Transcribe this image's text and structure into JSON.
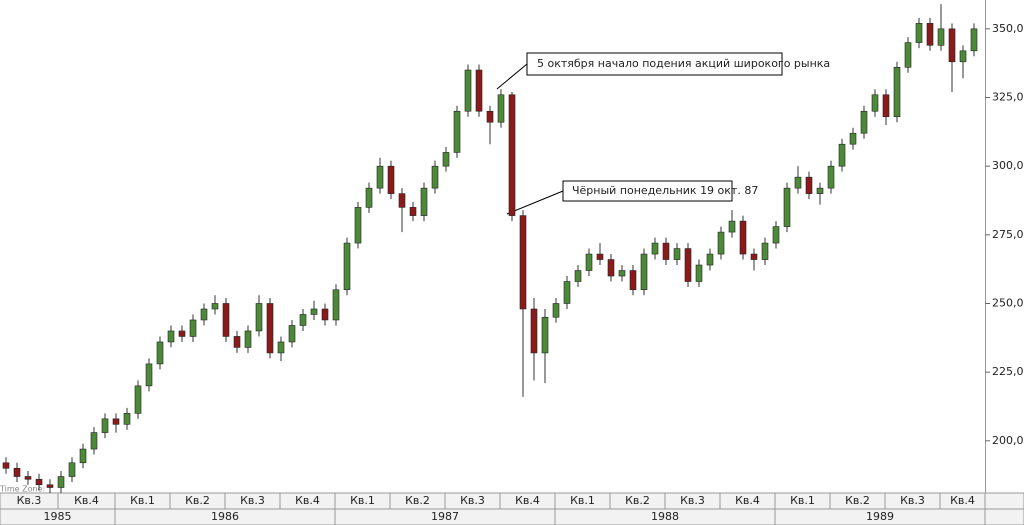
{
  "chart_data": {
    "type": "candlestick",
    "up_color": "#4c8a3a",
    "down_color": "#8b1a1a",
    "ylim": [
      181,
      360.5
    ],
    "yticks": [
      {
        "value": 200,
        "label": "200,00"
      },
      {
        "value": 225,
        "label": "225,00"
      },
      {
        "value": 250,
        "label": "250,00"
      },
      {
        "value": 275,
        "label": "275,00"
      },
      {
        "value": 300,
        "label": "300,00"
      },
      {
        "value": 325,
        "label": "325,00"
      },
      {
        "value": 350,
        "label": "350,00"
      }
    ],
    "candles": [
      [
        192,
        194,
        188,
        190
      ],
      [
        190,
        192,
        185,
        187
      ],
      [
        187,
        189,
        184,
        186
      ],
      [
        186,
        188,
        182,
        184
      ],
      [
        184,
        186,
        181,
        183
      ],
      [
        183,
        189,
        181,
        187
      ],
      [
        187,
        194,
        185,
        192
      ],
      [
        192,
        199,
        190,
        197
      ],
      [
        197,
        205,
        195,
        203
      ],
      [
        203,
        210,
        201,
        208
      ],
      [
        208,
        210,
        203,
        206
      ],
      [
        206,
        212,
        204,
        210
      ],
      [
        210,
        222,
        208,
        220
      ],
      [
        220,
        230,
        218,
        228
      ],
      [
        228,
        238,
        226,
        236
      ],
      [
        236,
        242,
        234,
        240
      ],
      [
        240,
        242,
        236,
        238
      ],
      [
        238,
        246,
        236,
        244
      ],
      [
        244,
        250,
        242,
        248
      ],
      [
        248,
        253,
        246,
        250
      ],
      [
        250,
        252,
        236,
        238
      ],
      [
        238,
        240,
        232,
        234
      ],
      [
        234,
        242,
        232,
        240
      ],
      [
        240,
        253,
        238,
        250
      ],
      [
        250,
        252,
        230,
        232
      ],
      [
        232,
        238,
        229,
        236
      ],
      [
        236,
        244,
        234,
        242
      ],
      [
        242,
        248,
        240,
        246
      ],
      [
        246,
        251,
        244,
        248
      ],
      [
        248,
        250,
        242,
        244
      ],
      [
        244,
        257,
        242,
        255
      ],
      [
        255,
        274,
        253,
        272
      ],
      [
        272,
        287,
        270,
        285
      ],
      [
        285,
        294,
        283,
        292
      ],
      [
        292,
        303,
        290,
        300
      ],
      [
        300,
        302,
        288,
        290
      ],
      [
        290,
        292,
        276,
        285
      ],
      [
        285,
        287,
        280,
        282
      ],
      [
        282,
        294,
        280,
        292
      ],
      [
        292,
        302,
        290,
        300
      ],
      [
        300,
        307,
        298,
        305
      ],
      [
        305,
        322,
        303,
        320
      ],
      [
        320,
        337,
        318,
        335
      ],
      [
        335,
        337,
        318,
        320
      ],
      [
        320,
        322,
        308,
        316
      ],
      [
        316,
        328,
        314,
        326
      ],
      [
        326,
        327,
        280,
        282
      ],
      [
        282,
        284,
        216,
        248
      ],
      [
        248,
        252,
        222,
        232
      ],
      [
        232,
        248,
        221,
        245
      ],
      [
        245,
        252,
        243,
        250
      ],
      [
        250,
        260,
        248,
        258
      ],
      [
        258,
        264,
        256,
        262
      ],
      [
        262,
        270,
        260,
        268
      ],
      [
        268,
        272,
        264,
        266
      ],
      [
        266,
        268,
        258,
        260
      ],
      [
        260,
        264,
        258,
        262
      ],
      [
        262,
        264,
        253,
        255
      ],
      [
        255,
        270,
        253,
        268
      ],
      [
        268,
        274,
        266,
        272
      ],
      [
        272,
        274,
        264,
        266
      ],
      [
        266,
        272,
        264,
        270
      ],
      [
        270,
        272,
        256,
        258
      ],
      [
        258,
        266,
        256,
        264
      ],
      [
        264,
        270,
        262,
        268
      ],
      [
        268,
        278,
        266,
        276
      ],
      [
        276,
        284,
        274,
        280
      ],
      [
        280,
        282,
        266,
        268
      ],
      [
        268,
        270,
        262,
        266
      ],
      [
        266,
        274,
        264,
        272
      ],
      [
        272,
        280,
        270,
        278
      ],
      [
        278,
        294,
        276,
        292
      ],
      [
        292,
        300,
        290,
        296
      ],
      [
        296,
        298,
        288,
        290
      ],
      [
        290,
        294,
        286,
        292
      ],
      [
        292,
        302,
        290,
        300
      ],
      [
        300,
        310,
        298,
        308
      ],
      [
        308,
        314,
        306,
        312
      ],
      [
        312,
        322,
        310,
        320
      ],
      [
        320,
        328,
        318,
        326
      ],
      [
        326,
        328,
        315,
        318
      ],
      [
        318,
        338,
        316,
        336
      ],
      [
        336,
        347,
        334,
        345
      ],
      [
        345,
        354,
        343,
        352
      ],
      [
        352,
        354,
        342,
        344
      ],
      [
        344,
        359,
        342,
        350
      ],
      [
        350,
        352,
        327,
        338
      ],
      [
        338,
        344,
        332,
        342
      ],
      [
        342,
        352,
        340,
        350
      ]
    ],
    "annotations": [
      "5 октября начало подения акций широкого рынка",
      "Чёрный понедельник 19 окт. 87"
    ],
    "quarters": [
      "Кв.3",
      "Кв.4",
      "Кв.1",
      "Кв.2",
      "Кв.3",
      "Кв.4",
      "Кв.1",
      "Кв.2",
      "Кв.3",
      "Кв.4",
      "Кв.1",
      "Кв.2",
      "Кв.3",
      "Кв.4",
      "Кв.1",
      "Кв.2",
      "Кв.3",
      "Кв.4"
    ],
    "years": [
      "1985",
      "1986",
      "1987",
      "1988",
      "1989"
    ],
    "time_zone": "Time Zone:"
  }
}
